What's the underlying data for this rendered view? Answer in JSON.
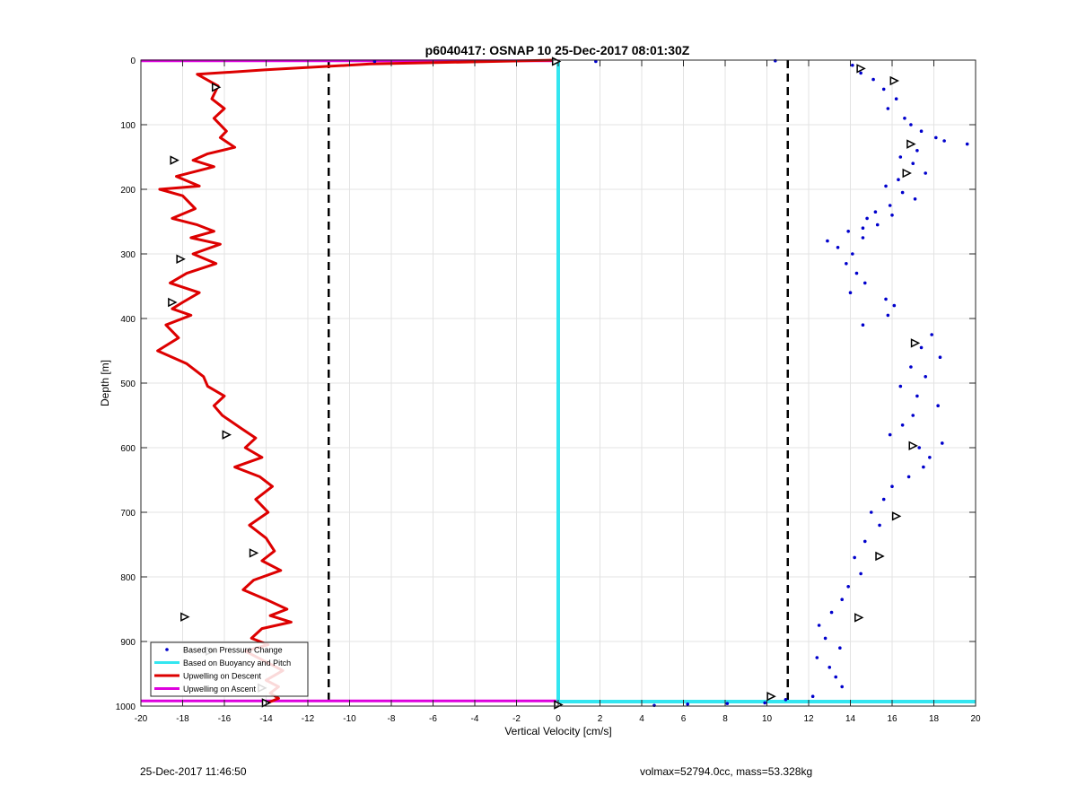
{
  "footer": {
    "timestamp": "25-Dec-2017 11:46:50",
    "vol_mass": "volmax=52794.0cc, mass=53.328kg"
  },
  "chart_data": {
    "type": "scatter",
    "title": "p6040417: OSNAP 10 25-Dec-2017 08:01:30Z",
    "xlabel": "Vertical Velocity [cm/s]",
    "ylabel": "Depth [m]",
    "xlim": [
      -20,
      20
    ],
    "ylim": [
      0,
      1000
    ],
    "y_reversed": true,
    "grid": true,
    "x_ticks": [
      -20,
      -18,
      -16,
      -14,
      -12,
      -10,
      -8,
      -6,
      -4,
      -2,
      0,
      2,
      4,
      6,
      8,
      10,
      12,
      14,
      16,
      18,
      20
    ],
    "y_ticks": [
      0,
      100,
      200,
      300,
      400,
      500,
      600,
      700,
      800,
      900,
      1000
    ],
    "legend_position": "bottom-left",
    "colors": {
      "pressure": "#0000cc",
      "buoyancy": "#33e6f0",
      "descent": "#dd0000",
      "ascent": "#dd00dd"
    },
    "legend": [
      {
        "key": "pressure",
        "label": "Based on Pressure Change",
        "style": "dot"
      },
      {
        "key": "buoyancy",
        "label": "Based on Buoyancy and Pitch",
        "style": "line"
      },
      {
        "key": "descent",
        "label": "Upwelling on Descent",
        "style": "line"
      },
      {
        "key": "ascent",
        "label": "Upwelling on Ascent",
        "style": "line"
      }
    ],
    "vertical_reference_lines": [
      -11,
      11
    ],
    "descent_upwelling": {
      "x": [
        -0.1,
        -9,
        -14,
        -17.3,
        -16.3,
        -16.6,
        -16.0,
        -16.5,
        -15.9,
        -16.2,
        -15.5,
        -16.8,
        -17.5,
        -16.5,
        -18.3,
        -17.2,
        -19.1,
        -18.0,
        -17.4,
        -18.5,
        -17.3,
        -16.5,
        -17.6,
        -16.2,
        -17.5,
        -16.4,
        -17.8,
        -18.6,
        -17.2,
        -18.0,
        -18.5,
        -17.6,
        -18.8,
        -18.2,
        -19.2,
        -17.8,
        -17.0,
        -16.8,
        -16.0,
        -16.5,
        -16.1,
        -15.2,
        -14.5,
        -15.0,
        -14.2,
        -15.5,
        -14.3,
        -13.7,
        -14.5,
        -13.9,
        -14.8,
        -14.0,
        -13.6,
        -14.2,
        -13.3,
        -14.6,
        -15.1,
        -14.0,
        -13.0,
        -13.8,
        -12.8,
        -14.2,
        -14.7,
        -13.9,
        -15.0,
        -14.1,
        -13.2,
        -14.0,
        -13.4,
        -13.8,
        -13.4,
        -14.0
      ],
      "depth": [
        0,
        6,
        15,
        22,
        40,
        60,
        75,
        90,
        110,
        120,
        135,
        145,
        155,
        165,
        180,
        195,
        200,
        210,
        230,
        245,
        255,
        265,
        275,
        285,
        300,
        315,
        330,
        345,
        360,
        375,
        385,
        395,
        410,
        430,
        450,
        470,
        490,
        505,
        520,
        535,
        550,
        570,
        585,
        600,
        615,
        630,
        645,
        660,
        680,
        700,
        720,
        740,
        760,
        775,
        790,
        805,
        820,
        835,
        850,
        860,
        870,
        880,
        895,
        905,
        915,
        930,
        945,
        960,
        970,
        980,
        988,
        996
      ]
    },
    "pressure_change": {
      "x": [
        14.1,
        14.5,
        15.1,
        15.6,
        16.2,
        15.8,
        16.6,
        16.9,
        17.4,
        18.1,
        18.5,
        19.6,
        17.2,
        16.4,
        17.0,
        17.6,
        16.3,
        15.7,
        16.5,
        17.1,
        15.9,
        15.2,
        14.8,
        15.3,
        14.6,
        16.0,
        13.9,
        14.6,
        12.9,
        13.4,
        14.1,
        13.8,
        14.3,
        14.7,
        14.0,
        15.7,
        16.1,
        15.8,
        14.6,
        17.9,
        17.4,
        18.3,
        16.9,
        17.6,
        16.4,
        17.2,
        18.2,
        17.0,
        16.5,
        15.9,
        17.3,
        17.8,
        17.5,
        16.8,
        16.0,
        15.6,
        15.0,
        15.4,
        14.7,
        14.2,
        14.5,
        13.9,
        13.6,
        13.1,
        12.5,
        12.8,
        13.5,
        12.4,
        13.0,
        13.3,
        13.6,
        12.2,
        18.4,
        10.9,
        4.6,
        6.2,
        8.1,
        9.9,
        -8.8,
        1.8,
        10.4
      ],
      "depth": [
        8,
        20,
        30,
        45,
        60,
        75,
        90,
        100,
        110,
        120,
        125,
        130,
        140,
        150,
        160,
        175,
        185,
        195,
        205,
        215,
        225,
        235,
        245,
        255,
        260,
        240,
        265,
        275,
        280,
        290,
        300,
        315,
        330,
        345,
        360,
        370,
        380,
        395,
        410,
        425,
        445,
        460,
        475,
        490,
        505,
        520,
        535,
        550,
        565,
        580,
        600,
        615,
        630,
        645,
        660,
        680,
        700,
        720,
        745,
        770,
        795,
        815,
        835,
        855,
        875,
        895,
        910,
        925,
        940,
        955,
        970,
        985,
        593,
        990,
        999,
        997,
        996,
        995,
        2,
        2,
        1
      ]
    },
    "buoyancy_pitch": {
      "x": [
        0,
        0,
        20
      ],
      "depth": [
        0,
        993,
        993
      ]
    },
    "ascent_upwelling": {
      "x": [
        -20,
        0,
        0,
        -20
      ],
      "depth": [
        1,
        1,
        992,
        992
      ]
    },
    "triangle_markers": {
      "x": [
        -0.1,
        -16.4,
        -18.4,
        -18.1,
        -18.5,
        -15.9,
        -14.6,
        -17.9,
        -16.7,
        -14.2,
        14.5,
        16.1,
        16.9,
        16.7,
        17.1,
        17.0,
        16.2,
        15.4,
        14.4,
        -14.0,
        0,
        10.2
      ],
      "depth": [
        2,
        42,
        155,
        308,
        375,
        580,
        763,
        862,
        915,
        972,
        13,
        32,
        130,
        175,
        438,
        597,
        706,
        768,
        863,
        995,
        998,
        985
      ]
    }
  }
}
